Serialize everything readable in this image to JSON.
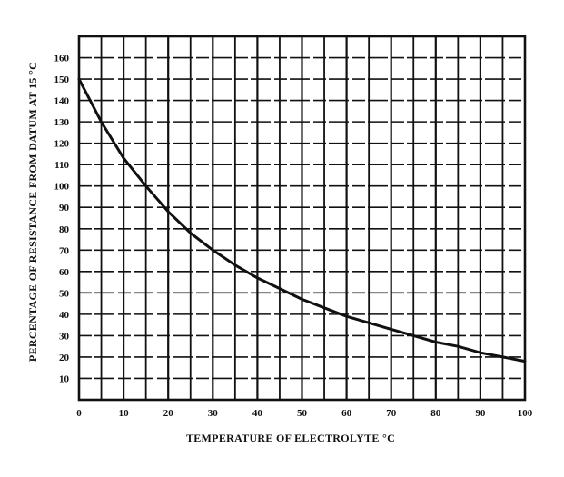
{
  "chart_data": {
    "type": "line",
    "title": "",
    "xlabel": "TEMPERATURE OF ELECTROLYTE °C",
    "ylabel": "PERCENTAGE OF RESISTANCE FROM DATUM AT  15  °C",
    "xlim": [
      0,
      100
    ],
    "ylim": [
      0,
      170
    ],
    "x_ticks": [
      "0",
      "10",
      "20",
      "30",
      "40",
      "50",
      "60",
      "70",
      "80",
      "90",
      "100"
    ],
    "y_ticks": [
      "10",
      "20",
      "30",
      "40",
      "50",
      "60",
      "70",
      "80",
      "90",
      "100",
      "110",
      "120",
      "130",
      "140",
      "150",
      "160"
    ],
    "grid": true,
    "x_minor_step": 5,
    "y_minor_step": 10,
    "series": [
      {
        "x": [
          0,
          5,
          10,
          15,
          20,
          25,
          30,
          35,
          40,
          45,
          50,
          55,
          60,
          65,
          70,
          75,
          80,
          85,
          90,
          95,
          100
        ],
        "y": [
          150,
          130,
          113,
          100,
          88,
          78,
          70,
          63,
          57,
          52,
          47,
          43,
          39,
          36,
          33,
          30,
          27,
          25,
          22,
          20,
          18
        ]
      }
    ],
    "colors": {
      "line": "#111111",
      "grid": "#111111",
      "background": "#ffffff"
    }
  }
}
